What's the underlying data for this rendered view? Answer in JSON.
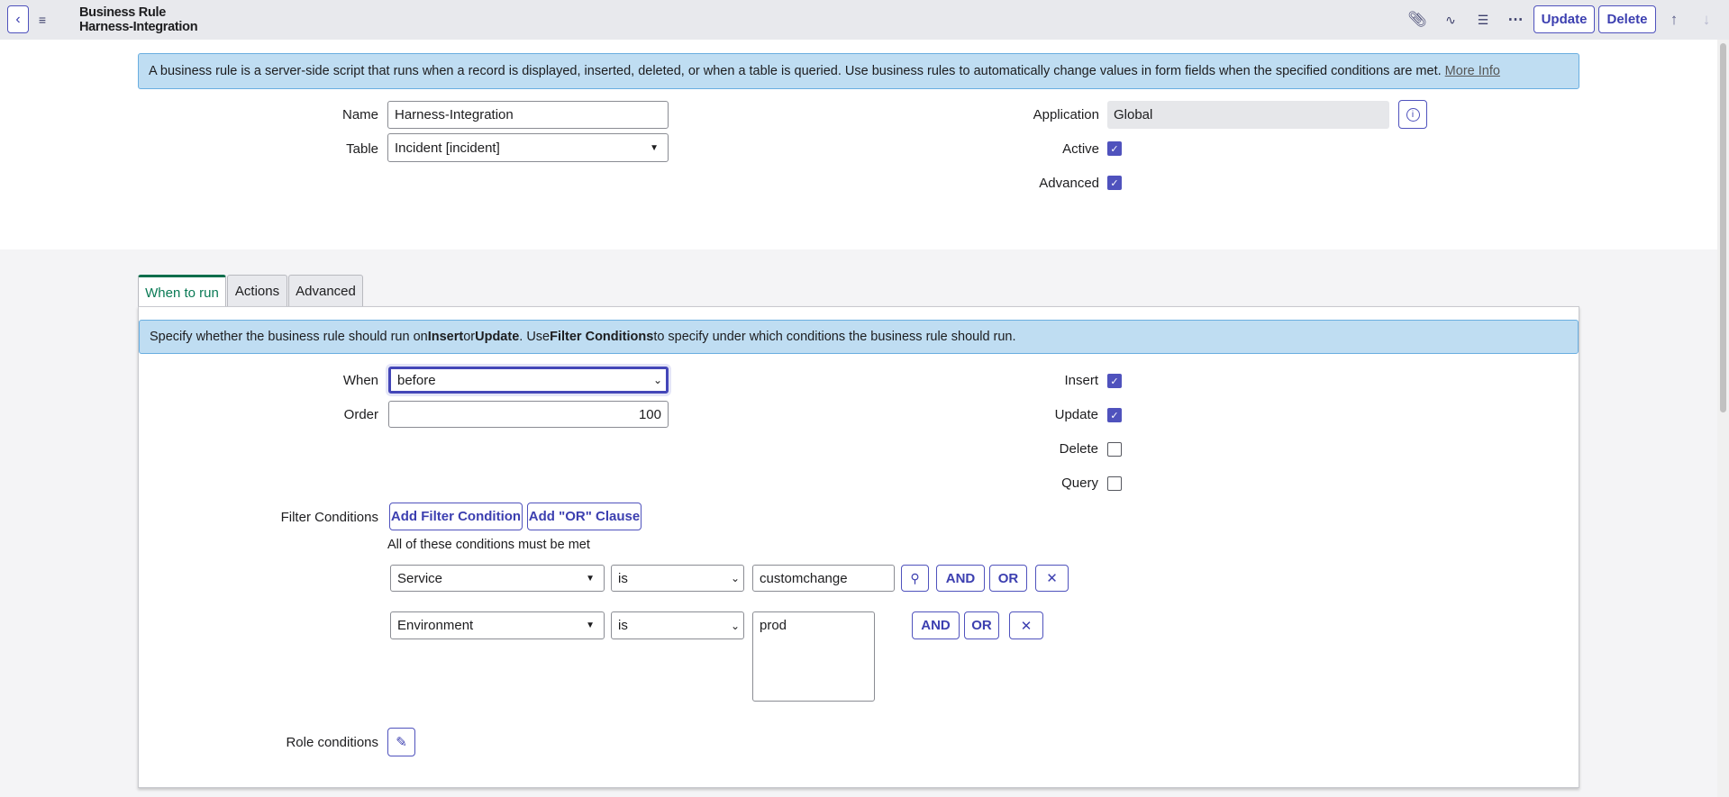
{
  "header": {
    "record_type": "Business Rule",
    "record_name": "Harness-Integration",
    "update_label": "Update",
    "delete_label": "Delete",
    "icons": [
      "back-icon",
      "menu-icon",
      "paperclip-icon",
      "activity-icon",
      "sliders-icon",
      "more-icon",
      "arrow-up-icon",
      "arrow-down-icon"
    ]
  },
  "info_banner": {
    "text": "A business rule is a server-side script that runs when a record is displayed, inserted, deleted, or when a table is queried. Use business rules to automatically change values in form fields when the specified conditions are met.",
    "link": "More Info"
  },
  "form": {
    "name_label": "Name",
    "name_value": "Harness-Integration",
    "table_label": "Table",
    "table_value": "Incident [incident]",
    "application_label": "Application",
    "application_value": "Global",
    "active_label": "Active",
    "active": true,
    "advanced_label": "Advanced",
    "advanced": true
  },
  "tabs": [
    {
      "label": "When to run",
      "active": true
    },
    {
      "label": "Actions"
    },
    {
      "label": "Advanced"
    }
  ],
  "when_to_run": {
    "banner": {
      "p1": "Specify whether the business rule should run on ",
      "b1": "Insert",
      "p2": " or ",
      "b2": "Update",
      "p3": ". Use ",
      "b3": "Filter Conditions",
      "p4": " to specify under which conditions the business rule should run."
    },
    "when_label": "When",
    "when_value": "before",
    "order_label": "Order",
    "order_value": "100",
    "insert_label": "Insert",
    "insert": true,
    "update_label": "Update",
    "update": true,
    "delete_label": "Delete",
    "delete": false,
    "query_label": "Query",
    "query": false,
    "filter_label": "Filter Conditions",
    "add_filter": "Add Filter Condition",
    "add_or": "Add \"OR\" Clause",
    "conditions_note": "All of these conditions must be met",
    "conditions": [
      {
        "field": "Service",
        "operator": "is",
        "value": "customchange"
      },
      {
        "field": "Environment",
        "operator": "is",
        "value": "prod"
      }
    ],
    "and_label": "AND",
    "or_label": "OR",
    "role_label": "Role conditions"
  },
  "colors": {
    "accent": "#4f52bd",
    "banner": "#bfddf2",
    "active_tab": "#0a7a55"
  }
}
